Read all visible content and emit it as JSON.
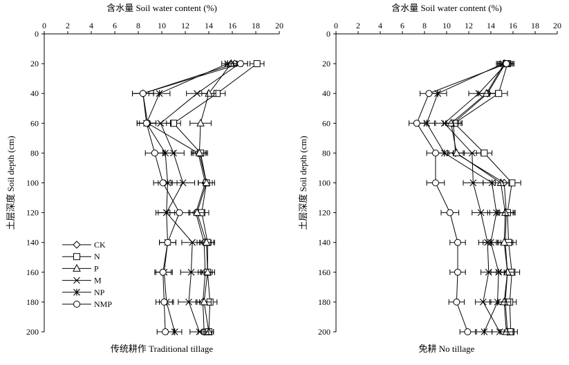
{
  "chart_data": [
    {
      "type": "line",
      "title": "传统耕作 Traditional tillage",
      "xlabel": "含水量 Soil water content (%)",
      "ylabel": "土层深度 Soil depth (cm)",
      "x_axis_position": "top",
      "y_axis_reversed": true,
      "xlim": [
        0,
        20
      ],
      "ylim": [
        0,
        200
      ],
      "x_ticks": [
        0,
        2,
        4,
        6,
        8,
        10,
        12,
        14,
        16,
        18,
        20
      ],
      "y_ticks": [
        0,
        20,
        40,
        60,
        80,
        100,
        120,
        140,
        160,
        180,
        200
      ],
      "depths": [
        20,
        40,
        60,
        80,
        100,
        120,
        140,
        160,
        180,
        200
      ],
      "grid": false,
      "legend_position": "bottom-left",
      "series": [
        {
          "name": "CK",
          "marker": "diamond",
          "values": [
            16.2,
            8.4,
            8.8,
            13.1,
            13.7,
            12.9,
            13.6,
            13.7,
            13.5,
            13.6
          ],
          "errors": [
            0.6,
            0.9,
            0.7,
            0.6,
            0.6,
            0.6,
            0.6,
            0.6,
            0.6,
            0.5
          ]
        },
        {
          "name": "N",
          "marker": "square",
          "values": [
            18.1,
            14.7,
            11.0,
            13.3,
            13.8,
            13.4,
            13.9,
            13.9,
            14.1,
            14.0
          ],
          "errors": [
            0.6,
            0.7,
            0.6,
            0.6,
            0.7,
            0.6,
            0.6,
            0.6,
            0.6,
            0.4
          ]
        },
        {
          "name": "P",
          "marker": "triangle",
          "values": [
            15.9,
            14.0,
            13.3,
            13.2,
            13.8,
            13.0,
            13.8,
            13.9,
            13.6,
            14.0
          ],
          "errors": [
            0.5,
            0.6,
            0.9,
            0.6,
            0.7,
            0.6,
            0.6,
            0.6,
            0.6,
            0.4
          ]
        },
        {
          "name": "M",
          "marker": "x",
          "values": [
            16.6,
            13.0,
            9.9,
            11.0,
            11.8,
            10.4,
            12.6,
            12.5,
            12.3,
            13.2
          ],
          "errors": [
            0.7,
            0.9,
            0.9,
            0.9,
            1.0,
            0.9,
            0.9,
            0.9,
            0.9,
            0.8
          ]
        },
        {
          "name": "NP",
          "marker": "asterisk",
          "values": [
            15.6,
            9.8,
            8.7,
            10.3,
            10.5,
            10.4,
            10.5,
            10.2,
            10.4,
            11.1
          ],
          "errors": [
            0.5,
            0.9,
            0.8,
            0.8,
            0.8,
            0.7,
            0.7,
            0.7,
            0.6,
            0.6
          ]
        },
        {
          "name": "NMP",
          "marker": "circle",
          "values": [
            16.7,
            8.4,
            8.7,
            9.4,
            10.1,
            11.5,
            10.5,
            10.1,
            10.2,
            10.3
          ],
          "errors": [
            0.6,
            0.9,
            0.8,
            0.8,
            0.8,
            0.8,
            0.7,
            0.7,
            0.7,
            0.7
          ]
        }
      ],
      "legend": [
        "CK",
        "N",
        "P",
        "M",
        "NP",
        "NMP"
      ]
    },
    {
      "type": "line",
      "title": "免耕 No tillage",
      "xlabel": "含水量 Soil water content (%)",
      "ylabel": "土层深度 Soil depth (cm)",
      "x_axis_position": "top",
      "y_axis_reversed": true,
      "xlim": [
        0,
        20
      ],
      "ylim": [
        0,
        200
      ],
      "x_ticks": [
        0,
        2,
        4,
        6,
        8,
        10,
        12,
        14,
        16,
        18,
        20
      ],
      "y_ticks": [
        0,
        20,
        40,
        60,
        80,
        100,
        120,
        140,
        160,
        180,
        200
      ],
      "depths": [
        20,
        40,
        60,
        80,
        100,
        120,
        140,
        160,
        180,
        200
      ],
      "grid": false,
      "series": [
        {
          "name": "CK",
          "marker": "diamond",
          "values": [
            15.3,
            13.7,
            10.6,
            10.8,
            15.2,
            15.4,
            15.3,
            15.5,
            15.3,
            15.5
          ],
          "errors": [
            0.6,
            0.8,
            0.7,
            0.7,
            0.8,
            0.7,
            0.7,
            0.6,
            0.6,
            0.6
          ]
        },
        {
          "name": "N",
          "marker": "square",
          "values": [
            15.5,
            14.7,
            10.7,
            13.4,
            15.9,
            15.5,
            15.6,
            15.9,
            15.7,
            15.8
          ],
          "errors": [
            0.6,
            0.8,
            0.7,
            0.7,
            0.8,
            0.7,
            0.7,
            0.7,
            0.6,
            0.6
          ]
        },
        {
          "name": "P",
          "marker": "triangle",
          "values": [
            15.2,
            13.6,
            10.4,
            10.9,
            14.9,
            15.3,
            15.2,
            15.5,
            15.2,
            15.4
          ],
          "errors": [
            0.6,
            0.8,
            0.7,
            0.7,
            0.8,
            0.7,
            0.7,
            0.6,
            0.6,
            0.6
          ]
        },
        {
          "name": "M",
          "marker": "x",
          "values": [
            15.4,
            12.9,
            9.8,
            12.3,
            12.4,
            13.1,
            13.7,
            13.8,
            13.3,
            14.8
          ],
          "errors": [
            0.6,
            0.9,
            0.8,
            0.8,
            0.9,
            0.8,
            0.8,
            0.7,
            0.7,
            0.7
          ]
        },
        {
          "name": "NP",
          "marker": "asterisk",
          "values": [
            15.1,
            9.2,
            8.2,
            9.8,
            14.1,
            14.5,
            14.0,
            14.7,
            14.6,
            13.4
          ],
          "errors": [
            0.6,
            0.8,
            0.7,
            0.8,
            0.8,
            0.8,
            0.7,
            0.7,
            0.7,
            0.7
          ]
        },
        {
          "name": "NMP",
          "marker": "circle",
          "values": [
            15.4,
            8.4,
            7.3,
            9.0,
            9.0,
            10.3,
            11.0,
            11.0,
            10.9,
            11.9
          ],
          "errors": [
            0.6,
            0.8,
            0.7,
            0.8,
            0.8,
            0.8,
            0.7,
            0.7,
            0.7,
            0.7
          ]
        }
      ]
    }
  ]
}
